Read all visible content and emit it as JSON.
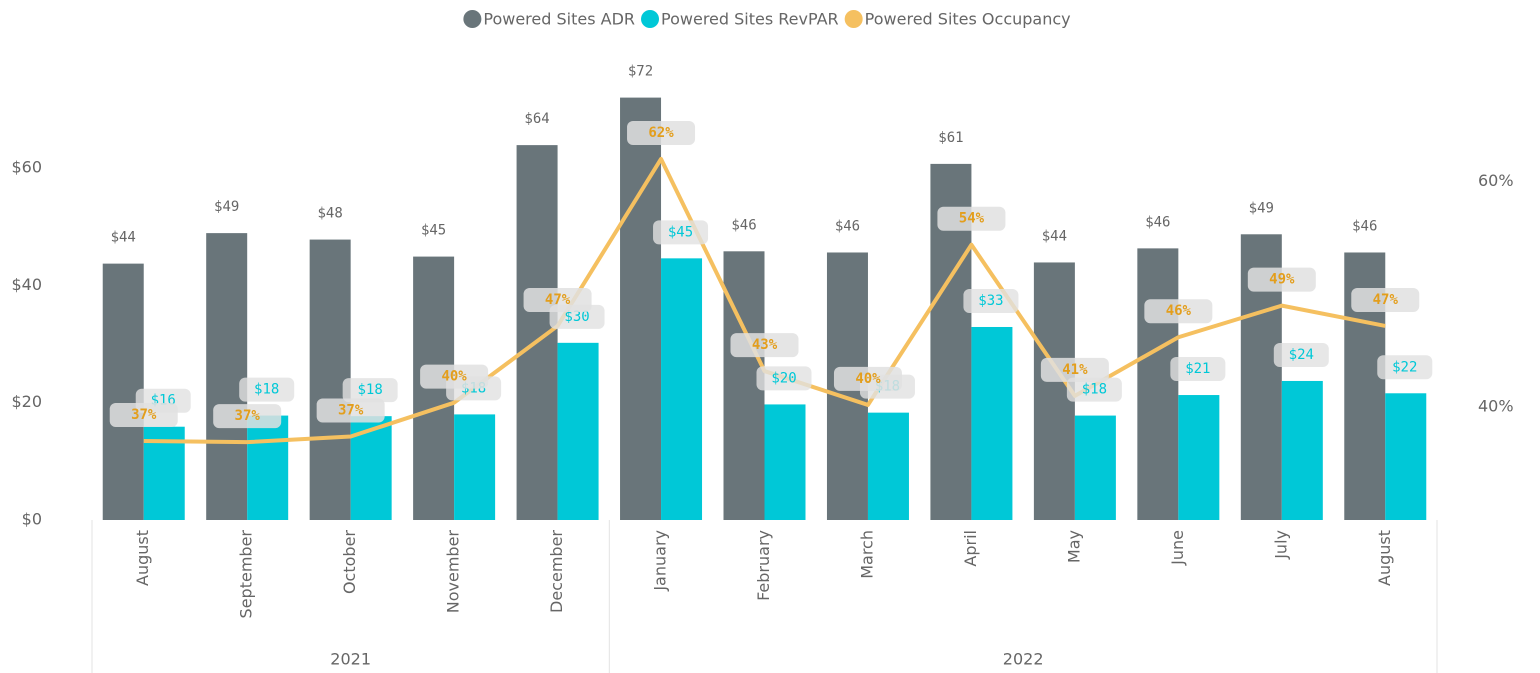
{
  "chart_data": {
    "type": "bar-line",
    "categories": [
      "August",
      "September",
      "October",
      "November",
      "December",
      "January",
      "February",
      "March",
      "April",
      "May",
      "June",
      "July",
      "August"
    ],
    "groups": [
      {
        "label": "2021",
        "span": 5
      },
      {
        "label": "2022",
        "span": 8
      }
    ],
    "series": [
      {
        "name": "Powered Sites ADR",
        "type": "bar",
        "color": "#69757a",
        "values": [
          43.7,
          48.9,
          47.8,
          44.9,
          63.9,
          72.0,
          45.8,
          45.6,
          60.7,
          43.9,
          46.3,
          48.7,
          45.6
        ],
        "value_labels": [
          "$44",
          "$49",
          "$48",
          "$45",
          "$64",
          "$72",
          "$46",
          "$46",
          "$61",
          "$44",
          "$46",
          "$49",
          "$46"
        ]
      },
      {
        "name": "Powered Sites RevPAR",
        "type": "bar",
        "color": "#00c8d7",
        "values": [
          15.9,
          17.8,
          17.7,
          18.0,
          30.2,
          44.6,
          19.7,
          18.3,
          32.9,
          17.8,
          21.3,
          23.7,
          21.6
        ],
        "value_labels": [
          "$16",
          "$18",
          "$18",
          "$18",
          "$30",
          "$45",
          "$20",
          "$18",
          "$33",
          "$18",
          "$21",
          "$24",
          "$22"
        ]
      },
      {
        "name": "Powered Sites Occupancy",
        "type": "line",
        "axis": "y2",
        "color": "#f5c060",
        "label_color": "#e39e1c",
        "values": [
          37.0,
          36.9,
          37.4,
          40.4,
          47.2,
          62.0,
          43.2,
          40.2,
          54.4,
          41.0,
          46.2,
          49.0,
          47.2
        ],
        "value_labels": [
          "37%",
          "37%",
          "37%",
          "40%",
          "47%",
          "62%",
          "43%",
          "40%",
          "54%",
          "41%",
          "46%",
          "49%",
          "47%"
        ]
      }
    ],
    "ylim": [
      0,
      75
    ],
    "yticks": [
      {
        "value": 0,
        "label": "$0"
      },
      {
        "value": 20,
        "label": "$20"
      },
      {
        "value": 40,
        "label": "$40"
      },
      {
        "value": 60,
        "label": "$60"
      }
    ],
    "y2lim": [
      30,
      69
    ],
    "y2ticks": [
      {
        "value": 40,
        "label": "40%"
      },
      {
        "value": 60,
        "label": "60%"
      }
    ],
    "grid": false,
    "legend": "top"
  }
}
